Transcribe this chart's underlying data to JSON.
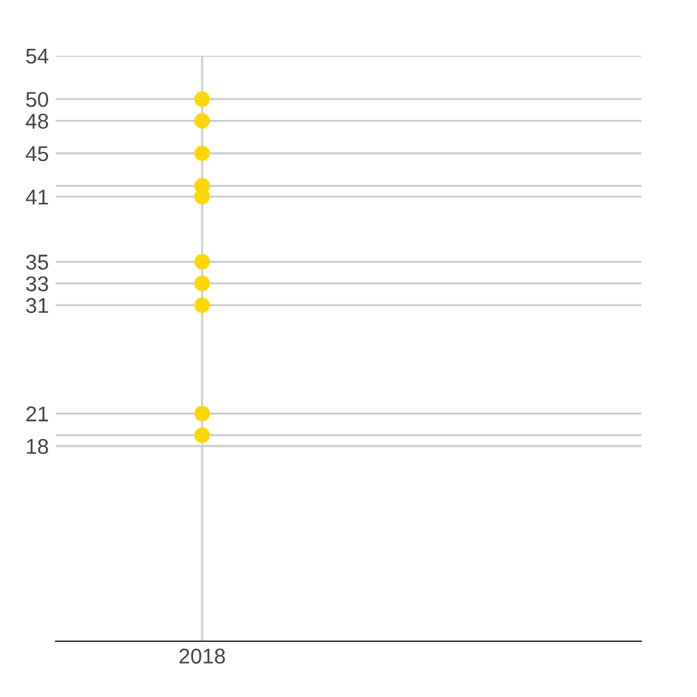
{
  "chart_data": {
    "type": "scatter",
    "categories": [
      "2018",
      null
    ],
    "series": [
      {
        "color": "#ffd700",
        "values": [
          50,
          null
        ]
      },
      {
        "color": "#ffd700",
        "values": [
          48,
          null
        ]
      },
      {
        "color": "#ffd700",
        "values": [
          45,
          null
        ]
      },
      {
        "color": "#ffd700",
        "values": [
          42,
          null
        ]
      },
      {
        "color": "#ffd700",
        "values": [
          41,
          null
        ]
      },
      {
        "color": "#ffd700",
        "values": [
          35,
          null
        ]
      },
      {
        "color": "#ffd700",
        "values": [
          33,
          null
        ]
      },
      {
        "color": "#ffd700",
        "values": [
          31,
          null
        ]
      },
      {
        "color": "#ffd700",
        "values": [
          21,
          null
        ]
      },
      {
        "color": "#ffd700",
        "values": [
          19,
          null
        ]
      }
    ],
    "ylim": [
      0,
      54
    ],
    "yticks": [
      54,
      50,
      48,
      45,
      {
        "value": 42,
        "label": null
      },
      41,
      35,
      33,
      31,
      21,
      {
        "value": 19,
        "label": null
      },
      18
    ],
    "grid": true,
    "marker": "circle",
    "legend": false
  }
}
